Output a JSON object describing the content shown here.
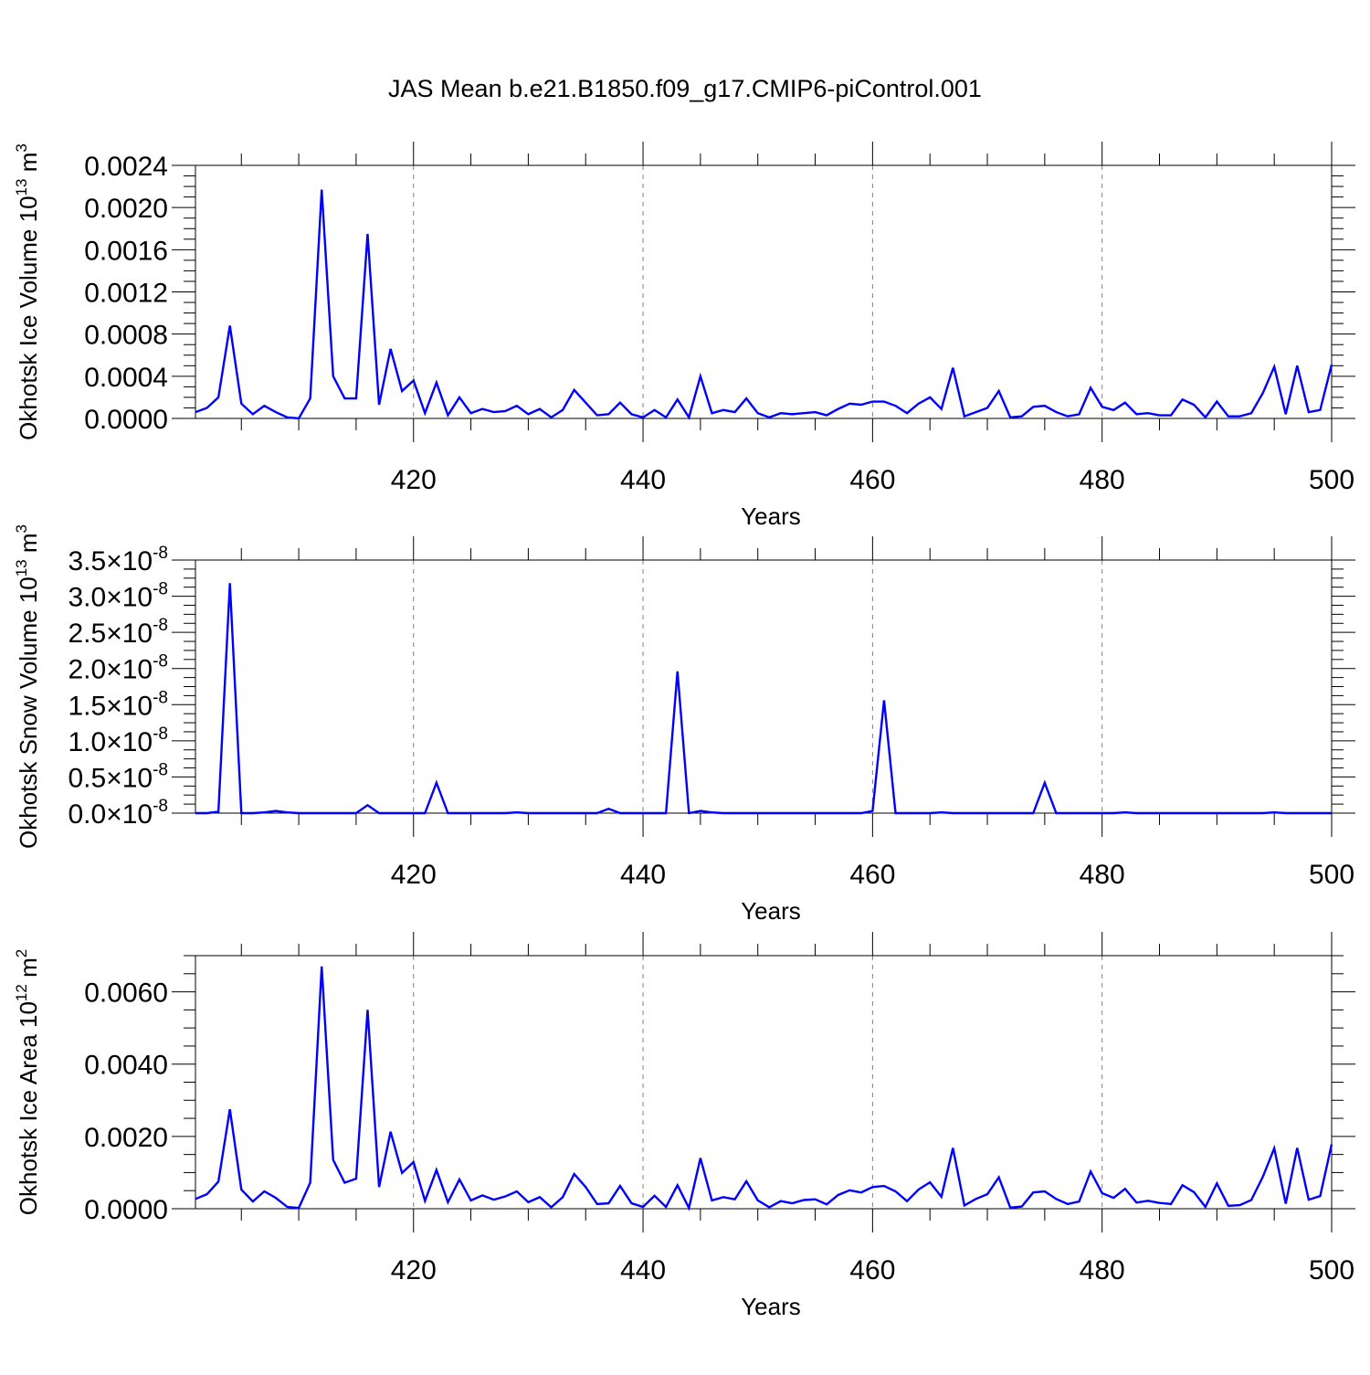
{
  "title": "JAS Mean b.e21.B1850.f09_g17.CMIP6-piControl.001",
  "colors": {
    "series": "#0000ff",
    "axis": "#000000",
    "grid": "#808080"
  },
  "chart_data": [
    {
      "type": "line",
      "ylabel": "Okhotsk Ice Volume 10",
      "ylabel_exp": "13",
      "ylabel_unit": " m",
      "ylabel_unit_exp": "3",
      "xlabel": "Years",
      "xlim": [
        401,
        500
      ],
      "ylim": [
        0,
        0.0024
      ],
      "xticks": [
        420,
        440,
        460,
        480,
        500
      ],
      "xtick_labels": [
        "420",
        "440",
        "460",
        "480",
        "500"
      ],
      "yticks": [
        0,
        0.0004,
        0.0008,
        0.0012,
        0.0016,
        0.002,
        0.0024
      ],
      "ytick_labels": [
        "0.0000",
        "0.0004",
        "0.0008",
        "0.0012",
        "0.0016",
        "0.0020",
        "0.0024"
      ],
      "grid": "vertical dashed at major x ticks",
      "series": [
        {
          "x_start": 401,
          "values": [
            6e-05,
            0.0001,
            0.0002,
            0.00088,
            0.00014,
            4e-05,
            0.00012,
            6e-05,
            1e-05,
            0.0,
            0.00019,
            0.00217,
            0.0004,
            0.00019,
            0.00019,
            0.00175,
            0.00013,
            0.00066,
            0.00026,
            0.00036,
            5e-05,
            0.00034,
            3e-05,
            0.0002,
            5e-05,
            9e-05,
            6e-05,
            7e-05,
            0.00012,
            4e-05,
            9e-05,
            1e-05,
            8e-05,
            0.00027,
            0.00015,
            3e-05,
            4e-05,
            0.00015,
            4e-05,
            1e-05,
            8e-05,
            1e-05,
            0.00018,
            1e-05,
            0.0004,
            5e-05,
            8e-05,
            6e-05,
            0.00019,
            5e-05,
            1e-05,
            5e-05,
            4e-05,
            5e-05,
            6e-05,
            3e-05,
            9e-05,
            0.00014,
            0.00013,
            0.00016,
            0.00016,
            0.00012,
            5e-05,
            0.00014,
            0.0002,
            9e-05,
            0.00048,
            2e-05,
            6e-05,
            0.0001,
            0.00026,
            1e-05,
            2e-05,
            0.00011,
            0.00012,
            6e-05,
            2e-05,
            4e-05,
            0.00029,
            0.00011,
            8e-05,
            0.00015,
            4e-05,
            5e-05,
            3e-05,
            3e-05,
            0.00018,
            0.00013,
            1e-05,
            0.00016,
            2e-05,
            2e-05,
            5e-05,
            0.00024,
            0.00049,
            4e-05,
            0.0005,
            6e-05,
            8e-05,
            0.00051
          ]
        }
      ]
    },
    {
      "type": "line",
      "ylabel": "Okhotsk Snow Volume 10",
      "ylabel_exp": "13",
      "ylabel_unit": " m",
      "ylabel_unit_exp": "3",
      "xlabel": "Years",
      "xlim": [
        401,
        500
      ],
      "ylim": [
        0,
        3.5e-08
      ],
      "xticks": [
        420,
        440,
        460,
        480,
        500
      ],
      "xtick_labels": [
        "420",
        "440",
        "460",
        "480",
        "500"
      ],
      "yticks": [
        0,
        5e-09,
        1e-08,
        1.5e-08,
        2e-08,
        2.5e-08,
        3e-08,
        3.5e-08
      ],
      "ytick_labels": [
        "0.0×10",
        "0.5×10",
        "1.0×10",
        "1.5×10",
        "2.0×10",
        "2.5×10",
        "3.0×10",
        "3.5×10"
      ],
      "ytick_exp": "-8",
      "grid": "vertical dashed at major x ticks",
      "series": [
        {
          "x_start": 401,
          "values": [
            0,
            0,
            2e-10,
            3.18e-08,
            0,
            0,
            1e-10,
            3e-10,
            1e-10,
            0,
            0,
            0,
            0,
            0,
            0,
            1.1e-09,
            0,
            0,
            0,
            0,
            0,
            4.2e-09,
            0,
            0,
            0,
            0,
            0,
            0,
            1e-10,
            0,
            0,
            0,
            0,
            0,
            0,
            0,
            6e-10,
            0,
            0,
            0,
            0,
            0,
            1.96e-08,
            0,
            3e-10,
            1e-10,
            0,
            0,
            0,
            0,
            0,
            0,
            0,
            0,
            0,
            0,
            0,
            0,
            0,
            3e-10,
            1.56e-08,
            0,
            0,
            0,
            0,
            1e-10,
            0,
            0,
            0,
            0,
            0,
            0,
            0,
            0,
            4.2e-09,
            0,
            0,
            0,
            0,
            0,
            0,
            1e-10,
            0,
            0,
            0,
            0,
            0,
            0,
            0,
            0,
            0,
            0,
            0,
            0,
            1e-10,
            0,
            0,
            0,
            0,
            0
          ]
        }
      ]
    },
    {
      "type": "line",
      "ylabel": "Okhotsk Ice Area 10",
      "ylabel_exp": "12",
      "ylabel_unit": " m",
      "ylabel_unit_exp": "2",
      "xlabel": "Years",
      "xlim": [
        401,
        500
      ],
      "ylim": [
        0,
        0.007
      ],
      "xticks": [
        420,
        440,
        460,
        480,
        500
      ],
      "xtick_labels": [
        "420",
        "440",
        "460",
        "480",
        "500"
      ],
      "yticks": [
        0,
        0.002,
        0.004,
        0.006
      ],
      "ytick_labels": [
        "0.0000",
        "0.0020",
        "0.0040",
        "0.0060"
      ],
      "grid": "vertical dashed at major x ticks",
      "series": [
        {
          "x_start": 401,
          "values": [
            0.00027,
            0.0004,
            0.00075,
            0.00275,
            0.00053,
            0.0002,
            0.00048,
            0.0003,
            5e-05,
            2e-05,
            0.00072,
            0.0067,
            0.00135,
            0.00072,
            0.00083,
            0.0055,
            0.0006,
            0.00213,
            0.00099,
            0.00129,
            0.00022,
            0.00107,
            0.00018,
            0.00081,
            0.00023,
            0.00037,
            0.00025,
            0.00034,
            0.00048,
            0.00018,
            0.00032,
            4e-05,
            0.00032,
            0.00096,
            0.0006,
            0.00013,
            0.00015,
            0.00063,
            0.00015,
            5e-05,
            0.00036,
            5e-05,
            0.00065,
            2e-05,
            0.0014,
            0.00023,
            0.00032,
            0.00026,
            0.00076,
            0.00023,
            4e-05,
            0.00021,
            0.00015,
            0.00024,
            0.00026,
            0.00012,
            0.00038,
            0.00051,
            0.00045,
            0.0006,
            0.00063,
            0.00048,
            0.00021,
            0.00053,
            0.00073,
            0.00033,
            0.00168,
            9e-05,
            0.00027,
            0.0004,
            0.00087,
            3e-05,
            6e-05,
            0.00045,
            0.00048,
            0.00027,
            0.00013,
            0.0002,
            0.00103,
            0.00043,
            0.0003,
            0.00055,
            0.00017,
            0.00022,
            0.00016,
            0.00013,
            0.00065,
            0.00046,
            5e-05,
            0.0007,
            8e-05,
            0.0001,
            0.00024,
            0.00088,
            0.00167,
            0.00014,
            0.00168,
            0.00025,
            0.00035,
            0.00178
          ]
        }
      ]
    }
  ]
}
